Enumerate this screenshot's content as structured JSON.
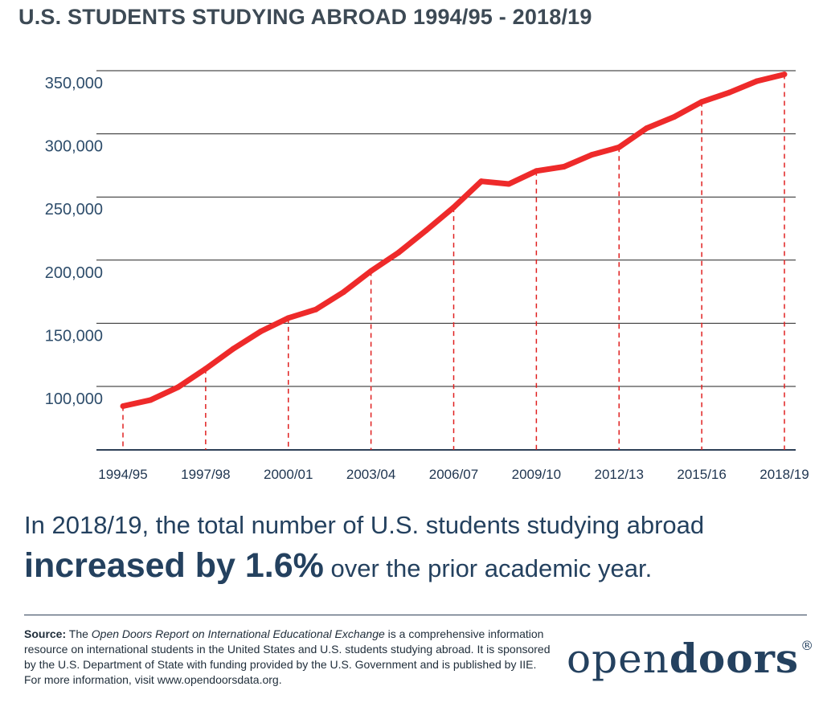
{
  "title": "U.S. STUDENTS STUDYING ABROAD 1994/95 - 2018/19",
  "chart_data": {
    "type": "line",
    "title": "U.S. STUDENTS STUDYING ABROAD 1994/95 - 2018/19",
    "xlabel": "",
    "ylabel": "",
    "x": [
      "1994/95",
      "1995/96",
      "1996/97",
      "1997/98",
      "1998/99",
      "1999/00",
      "2000/01",
      "2001/02",
      "2002/03",
      "2003/04",
      "2004/05",
      "2005/06",
      "2006/07",
      "2007/08",
      "2008/09",
      "2009/10",
      "2010/11",
      "2011/12",
      "2012/13",
      "2013/14",
      "2014/15",
      "2015/16",
      "2016/17",
      "2017/18",
      "2018/19"
    ],
    "x_tick_labels": [
      "1994/95",
      "1997/98",
      "2000/01",
      "2003/04",
      "2006/07",
      "2009/10",
      "2012/13",
      "2015/16",
      "2018/19"
    ],
    "y_tick_labels": [
      "100,000",
      "150,000",
      "200,000",
      "250,000",
      "300,000",
      "350,000"
    ],
    "y_ticks": [
      100000,
      150000,
      200000,
      250000,
      300000,
      350000
    ],
    "ylim": [
      60000,
      365000
    ],
    "grid": true,
    "series": [
      {
        "color": "#ee2a2a",
        "values": [
          84403,
          89242,
          99448,
          113959,
          129770,
          143590,
          154168,
          160920,
          174629,
          191321,
          205983,
          223534,
          241791,
          262416,
          260327,
          270604,
          273996,
          283332,
          289408,
          304467,
          313415,
          325339,
          332727,
          341751,
          347099
        ]
      }
    ],
    "drop_line_color": "#e02020"
  },
  "headline": "In 2018/19, the total number of U.S. students studying abroad",
  "highlight_bold": "increased by 1.6%",
  "highlight_rest": " over the prior academic year.",
  "source": {
    "label": "Source:",
    "pre": " The ",
    "italic": "Open Doors Report on International Educational Exchange",
    "post": " is a comprehensive information resource on international students in the United States and U.S. students studying abroad. It is sponsored by the U.S. Department of State with funding provided by the U.S. Government and is published by IIE. For more information, visit www.opendoorsdata.org."
  },
  "logo": {
    "light": "open",
    "bold": "doors",
    "mark": "®"
  }
}
